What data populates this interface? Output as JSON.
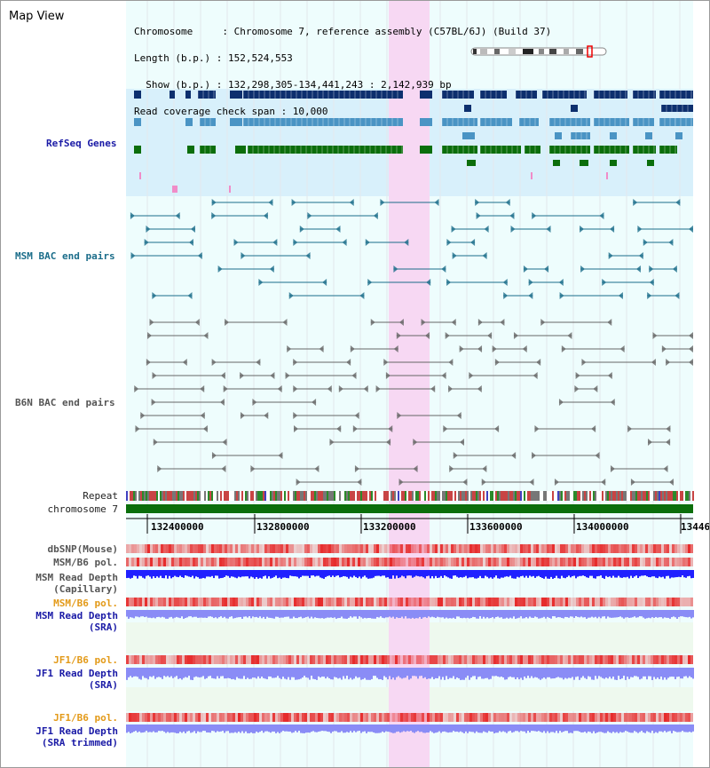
{
  "app": {
    "title": "Map View"
  },
  "header": {
    "line1": "Chromosome     : Chromosome 7, reference assembly (C57BL/6J) (Build 37)",
    "line2": "Length (b.p.) : 152,524,553",
    "line3": "  Show (b.p.) : 132,298,305-134,441,243 : 2,142,939 bp",
    "line4": "Read coverage check span : 10,000"
  },
  "tracks": {
    "refseq": "RefSeq Genes",
    "msm_bac": "MSM BAC end pairs",
    "b6n_bac": "B6N BAC end pairs",
    "repeat": "Repeat",
    "chromosome": "chromosome 7",
    "dbsnp": "dbSNP(Mouse)",
    "msm_b6_pol": "MSM/B6 pol.",
    "msm_depth_cap_1": "MSM Read Depth",
    "msm_depth_cap_2": "(Capillary)",
    "msm_b6_pol2": "MSM/B6 pol.",
    "msm_depth_sra_1": "MSM Read Depth",
    "msm_depth_sra_2": "(SRA)",
    "jf1_b6_pol": "JF1/B6 pol.",
    "jf1_depth_1": "JF1 Read Depth",
    "jf1_depth_2": "(SRA)",
    "jf1_b6_pol2": "JF1/B6 pol.",
    "jf1_trim_1": "JF1 Read Depth",
    "jf1_trim_2": "(SRA trimmed)"
  },
  "ruler": {
    "ticks": [
      "132400000",
      "132800000",
      "133200000",
      "133600000",
      "134000000",
      "13446"
    ]
  },
  "colors": {
    "highlight": "#f7d8f3",
    "refseq_bg": "#d8f0fb",
    "refseq_dark": "#0d2f6e",
    "refseq_mid": "#4a94c4",
    "refseq_green": "#0b6e0b",
    "msm_bac": "#1b6d8a",
    "b6n_bac": "#666666",
    "chromosome": "#0b6e0b",
    "depth_blue": "#2020ff",
    "depth_light": "#8a8cf6"
  }
}
